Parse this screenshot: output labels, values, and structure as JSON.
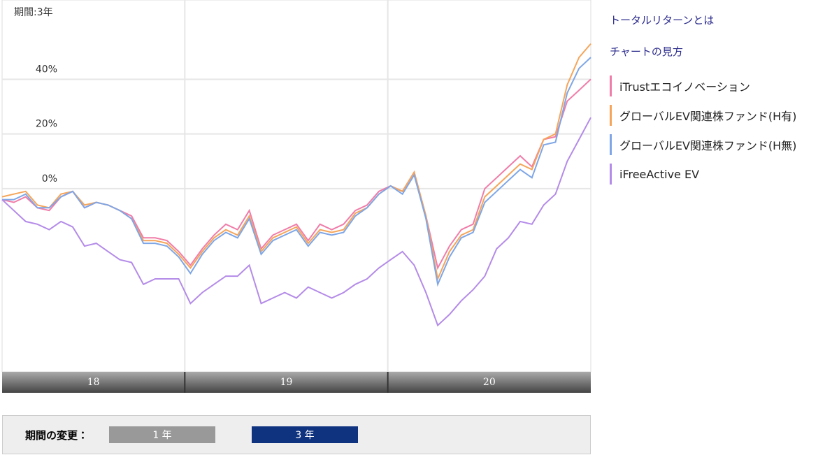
{
  "period_label": "期間:3年",
  "links": [
    "トータルリターンとは",
    "チャートの見方"
  ],
  "period_selector": {
    "label": "期間の変更：",
    "options": [
      "1 年",
      "3 年"
    ],
    "selected": 1
  },
  "chart_data": {
    "type": "line",
    "xlim": [
      2018.1,
      2021.0
    ],
    "xticks": [
      {
        "value": 2018,
        "label": "18"
      },
      {
        "value": 2019,
        "label": "19"
      },
      {
        "value": 2020,
        "label": "20"
      }
    ],
    "ylim": [
      -67,
      69
    ],
    "yticks": [
      {
        "value": 0,
        "label": "0%"
      },
      {
        "value": 20,
        "label": "20%"
      },
      {
        "value": 40,
        "label": "40%"
      }
    ],
    "grid": true,
    "series": [
      {
        "name": "iTrustエコイノベーション",
        "color": "#f07ca8",
        "values": [
          -4,
          -5,
          -3,
          -7,
          -8,
          -3,
          -1,
          -7,
          -5,
          -6,
          -8,
          -10,
          -18,
          -18,
          -19,
          -23,
          -28,
          -22,
          -17,
          -13,
          -15,
          -8,
          -22,
          -17,
          -15,
          -13,
          -19,
          -13,
          -15,
          -13,
          -8,
          -6,
          -1,
          1,
          -1,
          6,
          -10,
          -29,
          -21,
          -15,
          -13,
          0,
          4,
          8,
          12,
          8,
          18,
          19,
          32,
          36,
          40
        ]
      },
      {
        "name": "グローバルEV関連株ファンド(H有)",
        "color": "#f5a55a",
        "values": [
          -3,
          -2,
          -1,
          -6,
          -7,
          -2,
          -1,
          -6,
          -5,
          -6,
          -8,
          -11,
          -19,
          -19,
          -20,
          -24,
          -29,
          -23,
          -18,
          -15,
          -17,
          -10,
          -23,
          -18,
          -16,
          -14,
          -20,
          -15,
          -16,
          -15,
          -9,
          -7,
          -2,
          1,
          -1,
          6,
          -10,
          -33,
          -23,
          -17,
          -15,
          -3,
          1,
          5,
          9,
          7,
          18,
          20,
          38,
          48,
          53
        ]
      },
      {
        "name": "グローバルEV関連株ファンド(H無)",
        "color": "#7ea6e6",
        "values": [
          -4,
          -4,
          -2,
          -7,
          -7,
          -3,
          -1,
          -7,
          -5,
          -6,
          -8,
          -11,
          -20,
          -20,
          -21,
          -25,
          -31,
          -24,
          -19,
          -16,
          -18,
          -11,
          -24,
          -19,
          -17,
          -15,
          -21,
          -16,
          -17,
          -16,
          -10,
          -7,
          -2,
          1,
          -2,
          5,
          -11,
          -35,
          -25,
          -18,
          -16,
          -5,
          -1,
          3,
          7,
          4,
          16,
          17,
          35,
          44,
          48
        ]
      },
      {
        "name": "iFreeActive EV",
        "color": "#b48be8",
        "values": [
          -4,
          -8,
          -12,
          -13,
          -15,
          -12,
          -14,
          -21,
          -20,
          -23,
          -26,
          -27,
          -35,
          -33,
          -33,
          -33,
          -42,
          -38,
          -35,
          -32,
          -32,
          -28,
          -42,
          -40,
          -38,
          -40,
          -36,
          -38,
          -40,
          -38,
          -35,
          -33,
          -29,
          -26,
          -23,
          -28,
          -38,
          -50,
          -46,
          -41,
          -37,
          -32,
          -22,
          -18,
          -12,
          -13,
          -6,
          -2,
          10,
          18,
          26
        ]
      }
    ]
  }
}
